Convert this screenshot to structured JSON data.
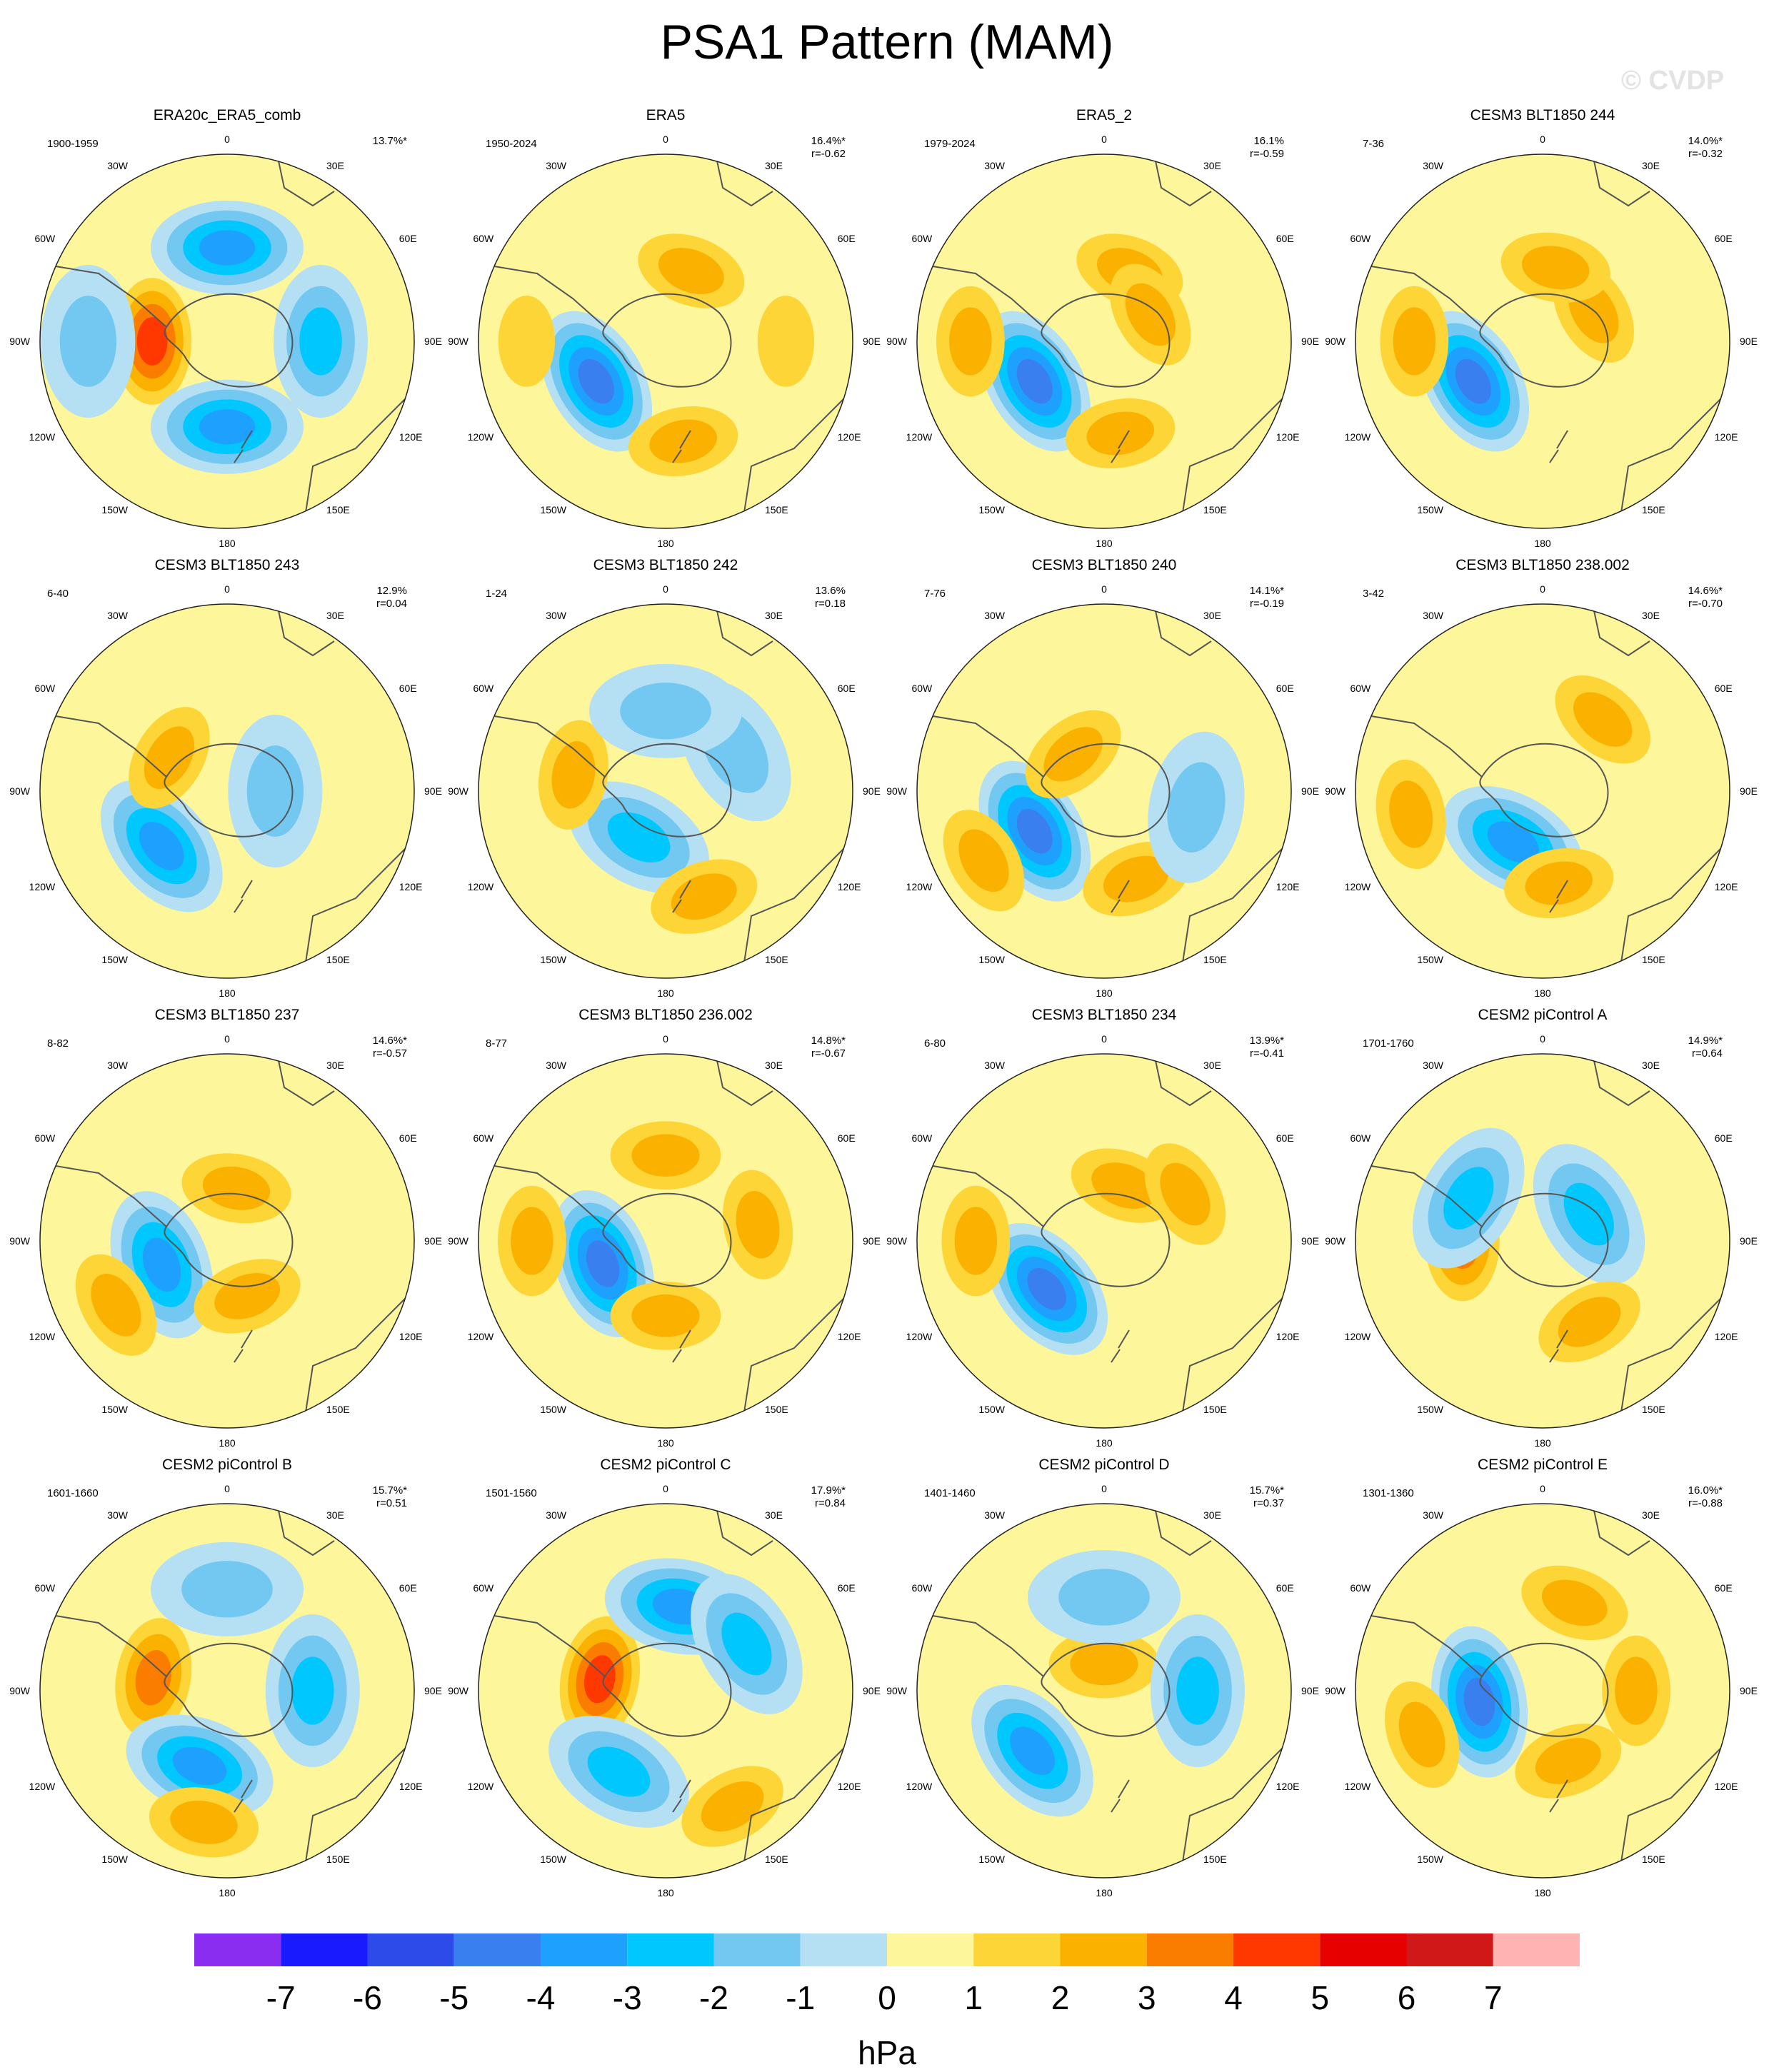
{
  "figure": {
    "title": "PSA1 Pattern (MAM)",
    "watermark": "© CVDP",
    "colorbar_unit": "hPa"
  },
  "chart_data": {
    "type": "polar-contour-maps",
    "layout": "4x4",
    "projection": "south-polar-stereographic",
    "longitude_labels": [
      "0",
      "30E",
      "60E",
      "90E",
      "120E",
      "150E",
      "180",
      "150W",
      "120W",
      "90W",
      "60W",
      "30W"
    ],
    "levels": [
      -7,
      -6,
      -5,
      -4,
      -3,
      -2,
      -1,
      0,
      1,
      2,
      3,
      4,
      5,
      6,
      7
    ],
    "level_colors": [
      "#8b2df0",
      "#1a1aff",
      "#2d4be8",
      "#3a7ff0",
      "#1ea0ff",
      "#00c8ff",
      "#72c8f0",
      "#b5dff2",
      "#fef69a",
      "#fdd537",
      "#fbb100",
      "#fa7d00",
      "#ff3800",
      "#e70000",
      "#d01818",
      "#ffb3b3"
    ],
    "panels": [
      {
        "title": "ERA20c_ERA5_comb",
        "years": "1900-1959",
        "pct": "13.7%*",
        "r": "",
        "centers": [
          {
            "lon": -90,
            "lat": -62,
            "v": 4
          },
          {
            "lon": 0,
            "lat": -55,
            "v": -3
          },
          {
            "lon": 180,
            "lat": -58,
            "v": -3
          },
          {
            "lon": 90,
            "lat": -55,
            "v": -2
          },
          {
            "lon": -90,
            "lat": -38,
            "v": -1
          }
        ]
      },
      {
        "title": "ERA5",
        "years": "1950-2024",
        "pct": "16.4%*",
        "r": "r=-0.62",
        "centers": [
          {
            "lon": -120,
            "lat": -60,
            "v": -4
          },
          {
            "lon": 20,
            "lat": -62,
            "v": 2
          },
          {
            "lon": 170,
            "lat": -52,
            "v": 2
          },
          {
            "lon": -90,
            "lat": -38,
            "v": 1
          },
          {
            "lon": 90,
            "lat": -45,
            "v": 1
          }
        ]
      },
      {
        "title": "ERA5_2",
        "years": "1979-2024",
        "pct": "16.1%",
        "r": "r=-0.59",
        "centers": [
          {
            "lon": -120,
            "lat": -60,
            "v": -4
          },
          {
            "lon": 20,
            "lat": -62,
            "v": 2
          },
          {
            "lon": 170,
            "lat": -55,
            "v": 2
          },
          {
            "lon": -90,
            "lat": -40,
            "v": 2
          },
          {
            "lon": 60,
            "lat": -70,
            "v": 2
          }
        ]
      },
      {
        "title": "CESM3 BLT1850 244",
        "years": "7-36",
        "pct": "14.0%*",
        "r": "r=-0.32",
        "centers": [
          {
            "lon": -120,
            "lat": -60,
            "v": -4
          },
          {
            "lon": 60,
            "lat": -68,
            "v": 2
          },
          {
            "lon": -90,
            "lat": -42,
            "v": 2
          },
          {
            "lon": 10,
            "lat": -62,
            "v": 2
          }
        ]
      },
      {
        "title": "CESM3 BLT1850 243",
        "years": "6-40",
        "pct": "12.9%",
        "r": "r=0.04",
        "centers": [
          {
            "lon": -130,
            "lat": -58,
            "v": -3
          },
          {
            "lon": -60,
            "lat": -65,
            "v": 2
          },
          {
            "lon": 90,
            "lat": -72,
            "v": -1
          }
        ]
      },
      {
        "title": "CESM3 BLT1850 242",
        "years": "1-24",
        "pct": "13.6%",
        "r": "r=0.18",
        "centers": [
          {
            "lon": -150,
            "lat": -70,
            "v": -2
          },
          {
            "lon": 60,
            "lat": -60,
            "v": -1
          },
          {
            "lon": -80,
            "lat": -55,
            "v": 2
          },
          {
            "lon": 160,
            "lat": -48,
            "v": 2
          },
          {
            "lon": 0,
            "lat": -60,
            "v": -1
          }
        ]
      },
      {
        "title": "CESM3 BLT1850 240",
        "years": "7-76",
        "pct": "14.1%*",
        "r": "r=-0.19",
        "centers": [
          {
            "lon": -120,
            "lat": -60,
            "v": -4
          },
          {
            "lon": -40,
            "lat": -72,
            "v": 2
          },
          {
            "lon": -120,
            "lat": -38,
            "v": 2
          },
          {
            "lon": 160,
            "lat": -55,
            "v": 2
          },
          {
            "lon": 100,
            "lat": -55,
            "v": -1
          }
        ]
      },
      {
        "title": "CESM3 BLT1850 238.002",
        "years": "3-42",
        "pct": "14.6%*",
        "r": "r=-0.70",
        "centers": [
          {
            "lon": -150,
            "lat": -68,
            "v": -3
          },
          {
            "lon": 40,
            "lat": -55,
            "v": 2
          },
          {
            "lon": -100,
            "lat": -40,
            "v": 2
          },
          {
            "lon": 170,
            "lat": -55,
            "v": 2
          }
        ]
      },
      {
        "title": "CESM3 BLT1850 237",
        "years": "8-82",
        "pct": "14.6%*",
        "r": "r=-0.57",
        "centers": [
          {
            "lon": -110,
            "lat": -64,
            "v": -3
          },
          {
            "lon": 10,
            "lat": -70,
            "v": 2
          },
          {
            "lon": 160,
            "lat": -68,
            "v": 2
          },
          {
            "lon": -120,
            "lat": -42,
            "v": 2
          }
        ]
      },
      {
        "title": "CESM3 BLT1850 236.002",
        "years": "8-77",
        "pct": "14.8%*",
        "r": "r=-0.67",
        "centers": [
          {
            "lon": -110,
            "lat": -65,
            "v": -4
          },
          {
            "lon": 0,
            "lat": -58,
            "v": 2
          },
          {
            "lon": 180,
            "lat": -62,
            "v": 2
          },
          {
            "lon": 80,
            "lat": -55,
            "v": 2
          },
          {
            "lon": -90,
            "lat": -40,
            "v": 2
          }
        ]
      },
      {
        "title": "CESM3 BLT1850 234",
        "years": "6-80",
        "pct": "13.9%*",
        "r": "r=-0.41",
        "centers": [
          {
            "lon": -130,
            "lat": -62,
            "v": -4
          },
          {
            "lon": 20,
            "lat": -68,
            "v": 2
          },
          {
            "lon": 60,
            "lat": -55,
            "v": 2
          },
          {
            "lon": -90,
            "lat": -42,
            "v": 2
          }
        ]
      },
      {
        "title": "CESM2 piControl A",
        "years": "1701-1760",
        "pct": "14.9%*",
        "r": "r=0.64",
        "centers": [
          {
            "lon": -90,
            "lat": -60,
            "v": 3
          },
          {
            "lon": 60,
            "lat": -70,
            "v": -2
          },
          {
            "lon": -60,
            "lat": -58,
            "v": -2
          },
          {
            "lon": 150,
            "lat": -55,
            "v": 2
          }
        ]
      },
      {
        "title": "CESM2 piControl B",
        "years": "1601-1660",
        "pct": "15.7%*",
        "r": "r=0.51",
        "centers": [
          {
            "lon": -80,
            "lat": -62,
            "v": 3
          },
          {
            "lon": -160,
            "lat": -60,
            "v": -3
          },
          {
            "lon": 90,
            "lat": -58,
            "v": -2
          },
          {
            "lon": 0,
            "lat": -52,
            "v": -1
          },
          {
            "lon": -170,
            "lat": -40,
            "v": 2
          }
        ]
      },
      {
        "title": "CESM2 piControl C",
        "years": "1501-1560",
        "pct": "17.9%*",
        "r": "r=0.84",
        "centers": [
          {
            "lon": -80,
            "lat": -65,
            "v": 4
          },
          {
            "lon": 10,
            "lat": -58,
            "v": -3
          },
          {
            "lon": 60,
            "lat": -55,
            "v": -2
          },
          {
            "lon": -150,
            "lat": -55,
            "v": -2
          },
          {
            "lon": 150,
            "lat": -40,
            "v": 2
          }
        ]
      },
      {
        "title": "CESM2 piControl D",
        "years": "1401-1460",
        "pct": "15.7%*",
        "r": "r=0.37",
        "centers": [
          {
            "lon": 0,
            "lat": -80,
            "v": 2
          },
          {
            "lon": -130,
            "lat": -55,
            "v": -3
          },
          {
            "lon": 90,
            "lat": -55,
            "v": -2
          },
          {
            "lon": 0,
            "lat": -55,
            "v": -1
          }
        ]
      },
      {
        "title": "CESM2 piControl E",
        "years": "1301-1360",
        "pct": "16.0%*",
        "r": "r=-0.88",
        "centers": [
          {
            "lon": -100,
            "lat": -66,
            "v": -4
          },
          {
            "lon": 160,
            "lat": -62,
            "v": 2
          },
          {
            "lon": 20,
            "lat": -55,
            "v": 2
          },
          {
            "lon": -110,
            "lat": -42,
            "v": 2
          },
          {
            "lon": 90,
            "lat": -55,
            "v": 2
          }
        ]
      }
    ]
  }
}
